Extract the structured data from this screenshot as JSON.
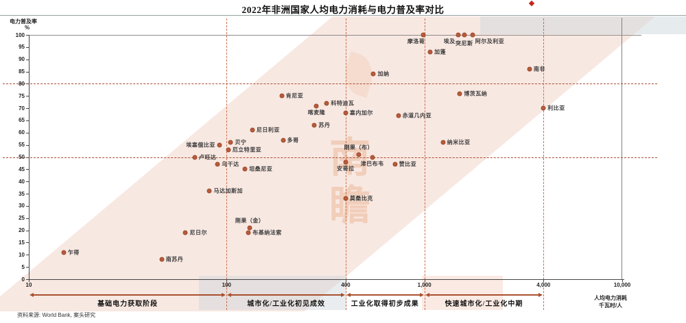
{
  "title": "2022年非洲国家人均电力消耗与电力普及率对比",
  "source": "资料来源: World Bank, 案头研究",
  "watermark": "南瞻",
  "colors": {
    "point": "#b65c3b",
    "dashed_vertical": "#c96a45",
    "dashed_horizontal": "#a84a2f",
    "stage_arrow": "#a8502e",
    "diagonal_band": "#f8e8e2",
    "red_mark": "#c5281c"
  },
  "chart_data": {
    "type": "scatter",
    "title": "2022年非洲国家人均电力消耗与电力普及率对比",
    "ylabel": "电力普及率",
    "ylabel_unit": "%",
    "xlabel_line1": "人均电力消耗",
    "xlabel_line2": "千瓦时/人",
    "x_scale": "log",
    "x_range": [
      10,
      10000
    ],
    "y_range": [
      0,
      100
    ],
    "y_tick_step": 5,
    "x_ticks": [
      {
        "v": 10,
        "label": "10"
      },
      {
        "v": 100,
        "label": "100"
      },
      {
        "v": 400,
        "label": "400"
      },
      {
        "v": 1000,
        "label": "1,000"
      },
      {
        "v": 4000,
        "label": "4,000"
      },
      {
        "v": 10000,
        "label": "10,000"
      }
    ],
    "dashed_vertical_at": [
      100,
      400,
      1000,
      4000
    ],
    "dashed_horizontal_at": [
      50,
      80
    ],
    "stages": [
      {
        "label": "基础电力获取阶段",
        "from": 10,
        "to": 100
      },
      {
        "label": "城市化/工业化初见成效",
        "from": 100,
        "to": 400
      },
      {
        "label": "工业化取得初步成果",
        "from": 400,
        "to": 1000
      },
      {
        "label": "快速城市化/工业化中期",
        "from": 1000,
        "to": 4000
      }
    ],
    "points": [
      {
        "name": "乍得",
        "x": 15,
        "y": 11,
        "labelPos": "right"
      },
      {
        "name": "南苏丹",
        "x": 47,
        "y": 8,
        "labelPos": "right"
      },
      {
        "name": "尼日尔",
        "x": 62,
        "y": 19,
        "labelPos": "right"
      },
      {
        "name": "卢旺达",
        "x": 69,
        "y": 50,
        "labelPos": "right"
      },
      {
        "name": "马达加斯加",
        "x": 82,
        "y": 36,
        "labelPos": "right"
      },
      {
        "name": "乌干达",
        "x": 90,
        "y": 47,
        "labelPos": "right"
      },
      {
        "name": "埃塞俄比亚",
        "x": 92,
        "y": 55,
        "labelPos": "left"
      },
      {
        "name": "厄立特里亚",
        "x": 102,
        "y": 53,
        "labelPos": "right"
      },
      {
        "name": "贝宁",
        "x": 105,
        "y": 56,
        "labelPos": "right"
      },
      {
        "name": "坦桑尼亚",
        "x": 124,
        "y": 45,
        "labelPos": "right"
      },
      {
        "name": "布基纳法索",
        "x": 129,
        "y": 19,
        "labelPos": "right"
      },
      {
        "name": "刚果（金）",
        "x": 131,
        "y": 21,
        "labelPos": "above"
      },
      {
        "name": "尼日利亚",
        "x": 135,
        "y": 61,
        "labelPos": "right"
      },
      {
        "name": "肯尼亚",
        "x": 190,
        "y": 75,
        "labelPos": "right"
      },
      {
        "name": "多哥",
        "x": 193,
        "y": 57,
        "labelPos": "right"
      },
      {
        "name": "苏丹",
        "x": 278,
        "y": 63,
        "labelPos": "right"
      },
      {
        "name": "喀麦隆",
        "x": 285,
        "y": 71,
        "labelPos": "below"
      },
      {
        "name": "科特迪瓦",
        "x": 321,
        "y": 72,
        "labelPos": "right"
      },
      {
        "name": "莫桑比克",
        "x": 400,
        "y": 33,
        "labelPos": "right"
      },
      {
        "name": "安哥拉",
        "x": 400,
        "y": 48,
        "labelPos": "below"
      },
      {
        "name": "塞内加尔",
        "x": 400,
        "y": 68,
        "labelPos": "right"
      },
      {
        "name": "刚果（布）",
        "x": 465,
        "y": 51,
        "labelPos": "above"
      },
      {
        "name": "津巴布韦",
        "x": 545,
        "y": 50,
        "labelPos": "below"
      },
      {
        "name": "加纳",
        "x": 553,
        "y": 84,
        "labelPos": "right"
      },
      {
        "name": "赞比亚",
        "x": 710,
        "y": 47,
        "labelPos": "right"
      },
      {
        "name": "赤道几内亚",
        "x": 738,
        "y": 67,
        "labelPos": "right"
      },
      {
        "name": "摩洛哥",
        "x": 990,
        "y": 100,
        "labelPos": "below-left"
      },
      {
        "name": "加蓬",
        "x": 1070,
        "y": 93,
        "labelPos": "right"
      },
      {
        "name": "纳米比亚",
        "x": 1240,
        "y": 56,
        "labelPos": "right"
      },
      {
        "name": "埃及",
        "x": 1480,
        "y": 100,
        "labelPos": "below-left",
        "dx": -6
      },
      {
        "name": "博茨瓦纳",
        "x": 1510,
        "y": 76,
        "labelPos": "right"
      },
      {
        "name": "突尼斯",
        "x": 1590,
        "y": 100,
        "labelPos": "below",
        "dy": 3
      },
      {
        "name": "阿尔及利亚",
        "x": 1750,
        "y": 100,
        "labelPos": "below-right"
      },
      {
        "name": "南非",
        "x": 3400,
        "y": 86,
        "labelPos": "right"
      },
      {
        "name": "利比亚",
        "x": 4000,
        "y": 70,
        "labelPos": "right"
      }
    ]
  }
}
